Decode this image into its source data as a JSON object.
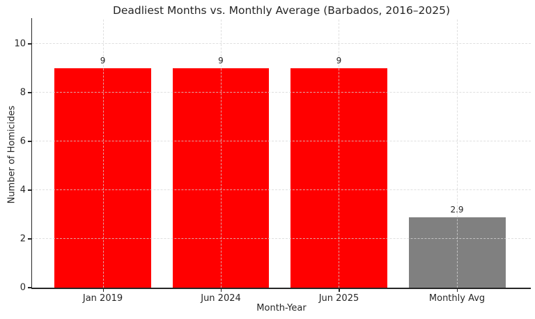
{
  "chart_data": {
    "type": "bar",
    "title": "Deadliest Months vs. Monthly Average (Barbados, 2016–2025)",
    "xlabel": "Month-Year",
    "ylabel": "Number of Homicides",
    "categories": [
      "Jan 2019",
      "Jun 2024",
      "Jun 2025",
      "Monthly Avg"
    ],
    "values": [
      9,
      9,
      9,
      2.9
    ],
    "bar_value_labels": [
      "9",
      "9",
      "9",
      "2.9"
    ],
    "bar_colors": [
      "#ff0000",
      "#ff0000",
      "#ff0000",
      "#808080"
    ],
    "ylim": [
      0,
      11
    ],
    "yticks": [
      0,
      2,
      4,
      6,
      8,
      10
    ],
    "ytick_labels": [
      "0",
      "2",
      "4",
      "6",
      "8",
      "10"
    ],
    "bar_width_fraction_of_slot": 0.8,
    "grid": {
      "horizontal": true,
      "vertical": true,
      "style": "dashed",
      "color": "#d6d6d6",
      "drawn_above_bars": true
    },
    "legend": null,
    "colors": {
      "deadliest_month_bar": "#ff0000",
      "monthly_avg_bar": "#808080",
      "spine": "#262626",
      "text": "#262626",
      "background": "#ffffff"
    }
  }
}
